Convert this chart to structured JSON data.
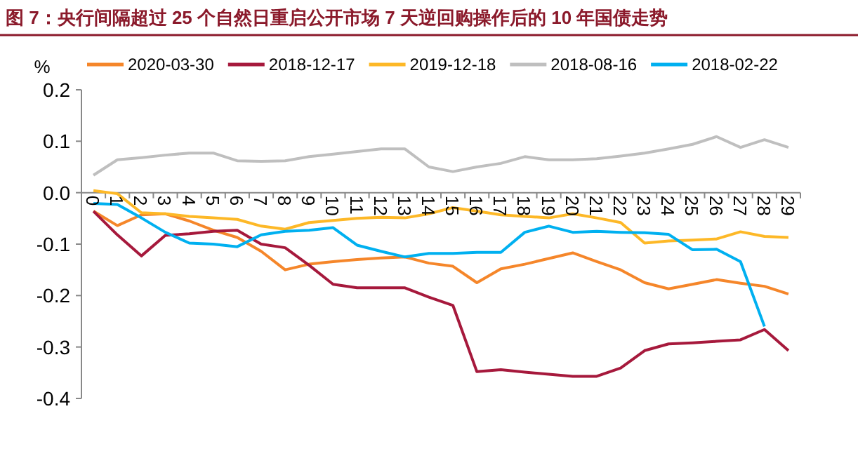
{
  "chart_data": {
    "type": "line",
    "title": "图 7：央行间隔超过 25 个自然日重启公开市场 7 天逆回购操作后的 10 年国债走势",
    "ylabel": "%",
    "categories": [
      "0",
      "1",
      "2",
      "3",
      "4",
      "5",
      "6",
      "7",
      "8",
      "9",
      "10",
      "11",
      "12",
      "13",
      "14",
      "15",
      "16",
      "17",
      "18",
      "19",
      "20",
      "21",
      "22",
      "23",
      "24",
      "25",
      "26",
      "27",
      "28",
      "29"
    ],
    "ylim": [
      -0.4,
      0.2
    ],
    "yticks": [
      {
        "value": 0.2,
        "label": "0.2"
      },
      {
        "value": 0.1,
        "label": "0.1"
      },
      {
        "value": 0,
        "label": "0.0"
      },
      {
        "value": -0.1,
        "label": "-0.1"
      },
      {
        "value": -0.2,
        "label": "-0.2"
      },
      {
        "value": -0.3,
        "label": "-0.3"
      },
      {
        "value": -0.4,
        "label": "-0.4"
      }
    ],
    "grid": false,
    "legend": "top",
    "marker": "none",
    "line_style": "solid",
    "series": [
      {
        "name": "2020-03-30",
        "color": "#f5862a",
        "values": [
          -0.036,
          -0.064,
          -0.043,
          -0.041,
          -0.055,
          -0.073,
          -0.087,
          -0.114,
          -0.15,
          -0.139,
          -0.134,
          -0.13,
          -0.127,
          -0.125,
          -0.137,
          -0.143,
          -0.175,
          -0.148,
          -0.139,
          -0.128,
          -0.117,
          -0.134,
          -0.15,
          -0.175,
          -0.187,
          -0.178,
          -0.169,
          -0.176,
          -0.182,
          -0.197
        ]
      },
      {
        "name": "2018-12-17",
        "color": "#a6193c",
        "values": [
          -0.036,
          -0.082,
          -0.123,
          -0.083,
          -0.08,
          -0.075,
          -0.073,
          -0.1,
          -0.107,
          -0.141,
          -0.178,
          -0.185,
          -0.185,
          -0.185,
          -0.203,
          -0.219,
          -0.348,
          -0.344,
          -0.349,
          -0.353,
          -0.357,
          -0.357,
          -0.341,
          -0.307,
          -0.294,
          -0.292,
          -0.289,
          -0.286,
          -0.266,
          -0.307
        ]
      },
      {
        "name": "2019-12-18",
        "color": "#fdb827",
        "values": [
          0.004,
          -0.002,
          -0.039,
          -0.041,
          -0.046,
          -0.049,
          -0.052,
          -0.065,
          -0.071,
          -0.058,
          -0.054,
          -0.05,
          -0.048,
          -0.049,
          -0.041,
          -0.029,
          -0.036,
          -0.043,
          -0.046,
          -0.049,
          -0.041,
          -0.049,
          -0.058,
          -0.098,
          -0.094,
          -0.092,
          -0.09,
          -0.076,
          -0.085,
          -0.087
        ]
      },
      {
        "name": "2018-08-16",
        "color": "#bfbfbf",
        "values": [
          0.034,
          0.064,
          0.068,
          0.073,
          0.077,
          0.077,
          0.062,
          0.061,
          0.062,
          0.07,
          0.075,
          0.08,
          0.085,
          0.085,
          0.05,
          0.041,
          0.05,
          0.057,
          0.07,
          0.064,
          0.064,
          0.066,
          0.071,
          0.077,
          0.085,
          0.094,
          0.109,
          0.088,
          0.103,
          0.088
        ]
      },
      {
        "name": "2018-02-22",
        "color": "#00b0f0",
        "values": [
          -0.021,
          -0.023,
          -0.049,
          -0.077,
          -0.098,
          -0.1,
          -0.105,
          -0.082,
          -0.075,
          -0.073,
          -0.068,
          -0.102,
          -0.114,
          -0.125,
          -0.118,
          -0.118,
          -0.116,
          -0.116,
          -0.077,
          -0.065,
          -0.077,
          -0.075,
          -0.077,
          -0.078,
          -0.081,
          -0.111,
          -0.11,
          -0.134,
          -0.26,
          null
        ]
      }
    ]
  }
}
